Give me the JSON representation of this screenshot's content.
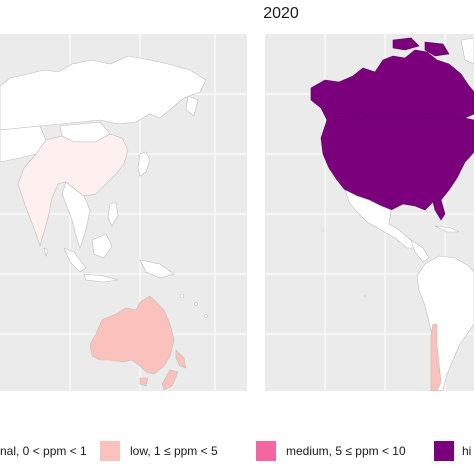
{
  "map": {
    "right_panel_title": "2020",
    "colors": {
      "background": "#ebebeb",
      "grid": "#ffffff",
      "country_fill": "#ffffff",
      "border": "#bdbdbd",
      "minimal": "#fef0ee",
      "low": "#fbc2bd",
      "medium": "#f4669f",
      "high": "#7a017b"
    },
    "legend": [
      {
        "category": "minimal",
        "label": "nal, 0 < ppm < 1"
      },
      {
        "category": "low",
        "label": "low, 1 ≤ ppm < 5"
      },
      {
        "category": "medium",
        "label": "medium, 5 ≤ ppm < 10"
      },
      {
        "category": "high",
        "label": "hi"
      }
    ],
    "regions": [
      {
        "name": "Asia",
        "category": "minimal"
      },
      {
        "name": "Australia",
        "category": "low"
      },
      {
        "name": "New Zealand",
        "category": "low"
      },
      {
        "name": "Canada",
        "category": "high"
      },
      {
        "name": "United States",
        "category": "high"
      },
      {
        "name": "Chile",
        "category": "low"
      },
      {
        "name": "Latin America",
        "category": "none"
      }
    ]
  }
}
